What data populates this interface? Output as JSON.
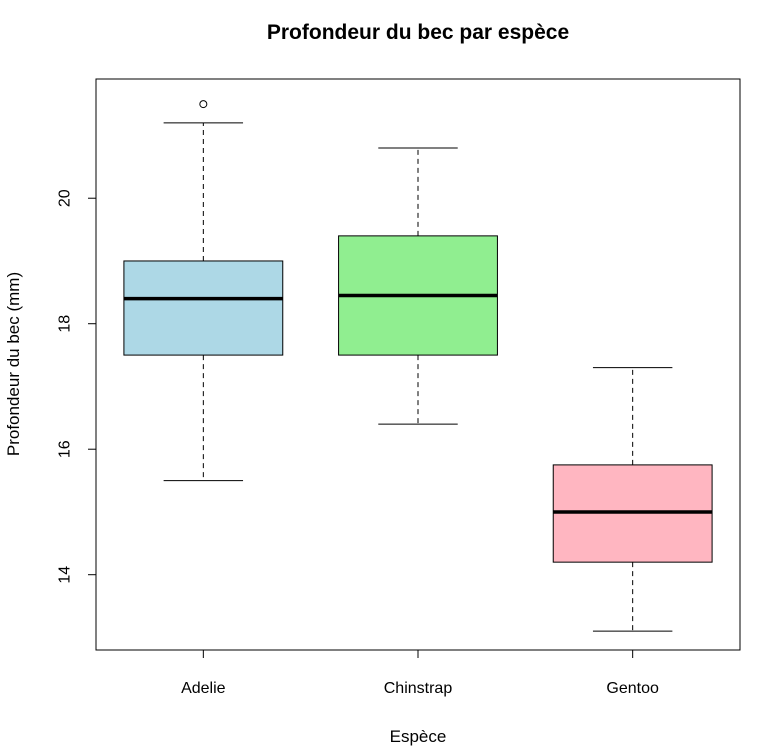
{
  "chart_data": {
    "type": "boxplot",
    "title": "Profondeur du bec par espèce",
    "xlabel": "Espèce",
    "ylabel": "Profondeur du bec (mm)",
    "categories": [
      "Adelie",
      "Chinstrap",
      "Gentoo"
    ],
    "y_ticks": [
      14,
      16,
      18,
      20
    ],
    "ylim": [
      12.8,
      21.9
    ],
    "boxes": [
      {
        "name": "Adelie",
        "whisker_low": 15.5,
        "q1": 17.5,
        "median": 18.4,
        "q3": 19.0,
        "whisker_high": 21.2,
        "outliers": [
          21.5
        ],
        "color": "#add8e6"
      },
      {
        "name": "Chinstrap",
        "whisker_low": 16.4,
        "q1": 17.5,
        "median": 18.45,
        "q3": 19.4,
        "whisker_high": 20.8,
        "outliers": [],
        "color": "#90ee90"
      },
      {
        "name": "Gentoo",
        "whisker_low": 13.1,
        "q1": 14.2,
        "median": 15.0,
        "q3": 15.75,
        "whisker_high": 17.3,
        "outliers": [],
        "color": "#ffb6c1"
      }
    ],
    "grid": false,
    "legend": "none"
  }
}
